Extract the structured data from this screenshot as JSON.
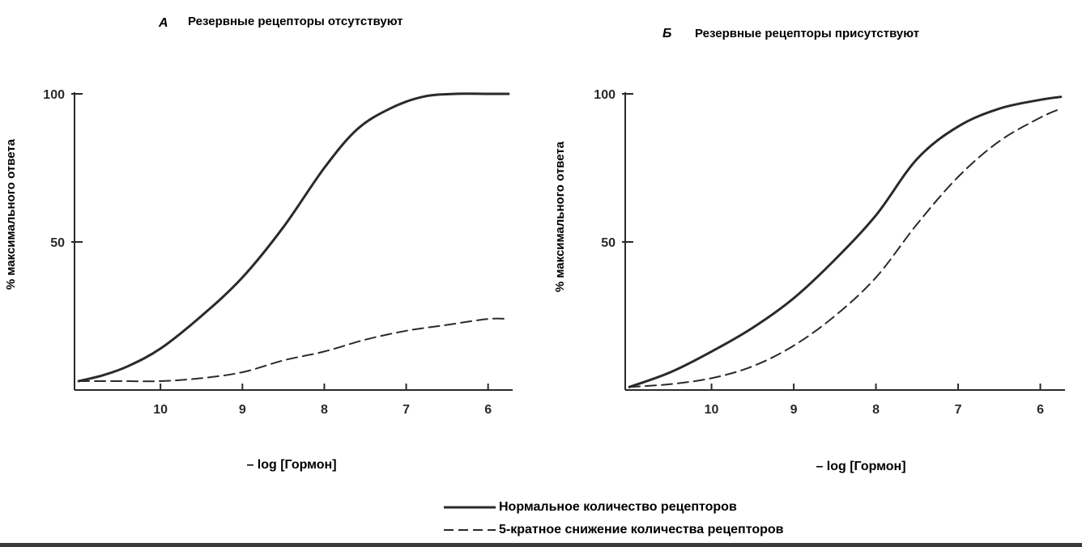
{
  "chart_data": [
    {
      "type": "line",
      "panel_letter": "А",
      "title": "Резервные рецепторы отсутствуют",
      "xlabel": "– log  [Гормон]",
      "ylabel": "% максимального ответа",
      "x_ticks": [
        10,
        9,
        8,
        7,
        6
      ],
      "x_tick_labels": [
        "10",
        "9",
        "8",
        "7",
        "6"
      ],
      "y_ticks": [
        50,
        100
      ],
      "y_tick_labels": [
        "50",
        "100"
      ],
      "xlim": [
        11.05,
        5.7
      ],
      "ylim": [
        0,
        100
      ],
      "grid": false,
      "series": [
        {
          "name": "Нормальное количество рецепторов",
          "style": "solid",
          "x": [
            11.0,
            10.7,
            10.4,
            10.0,
            9.5,
            9.0,
            8.5,
            8.0,
            7.6,
            7.2,
            6.8,
            6.4,
            6.0,
            5.75
          ],
          "y": [
            3,
            5,
            8,
            14,
            25,
            38,
            55,
            75,
            88,
            95,
            99,
            100,
            100,
            100
          ]
        },
        {
          "name": "5-кратное снижение количества рецепторов",
          "style": "dashed",
          "x": [
            11.0,
            10.5,
            10.0,
            9.5,
            9.0,
            8.5,
            8.0,
            7.5,
            7.0,
            6.5,
            6.0,
            5.75
          ],
          "y": [
            3,
            3,
            3,
            4,
            6,
            10,
            13,
            17,
            20,
            22,
            24,
            24
          ]
        }
      ]
    },
    {
      "type": "line",
      "panel_letter": "Б",
      "title": "Резервные рецепторы присутствуют",
      "xlabel": "– log  [Гормон]",
      "ylabel": "% максимального ответа",
      "x_ticks": [
        10,
        9,
        8,
        7,
        6
      ],
      "x_tick_labels": [
        "10",
        "9",
        "8",
        "7",
        "6"
      ],
      "y_ticks": [
        50,
        100
      ],
      "y_tick_labels": [
        "50",
        "100"
      ],
      "xlim": [
        11.05,
        5.7
      ],
      "ylim": [
        0,
        100
      ],
      "grid": false,
      "series": [
        {
          "name": "Нормальное количество рецепторов",
          "style": "solid",
          "x": [
            11.0,
            10.5,
            10.0,
            9.5,
            9.0,
            8.5,
            8.0,
            7.5,
            7.0,
            6.5,
            6.0,
            5.75
          ],
          "y": [
            1,
            6,
            13,
            21,
            31,
            44,
            59,
            78,
            89,
            95,
            98,
            99
          ]
        },
        {
          "name": "5-кратное снижение количества рецепторов",
          "style": "dashed",
          "x": [
            11.0,
            10.5,
            10.0,
            9.5,
            9.0,
            8.5,
            8.0,
            7.5,
            7.0,
            6.5,
            6.0,
            5.75
          ],
          "y": [
            1,
            2,
            4,
            8,
            15,
            25,
            38,
            56,
            72,
            84,
            92,
            95
          ]
        }
      ]
    }
  ],
  "legend": [
    {
      "style": "solid",
      "label": "Нормальное количество рецепторов"
    },
    {
      "style": "dashed",
      "label": "5-кратное снижение количества рецепторов"
    }
  ],
  "colors": {
    "ink": "#2a2a2a"
  }
}
